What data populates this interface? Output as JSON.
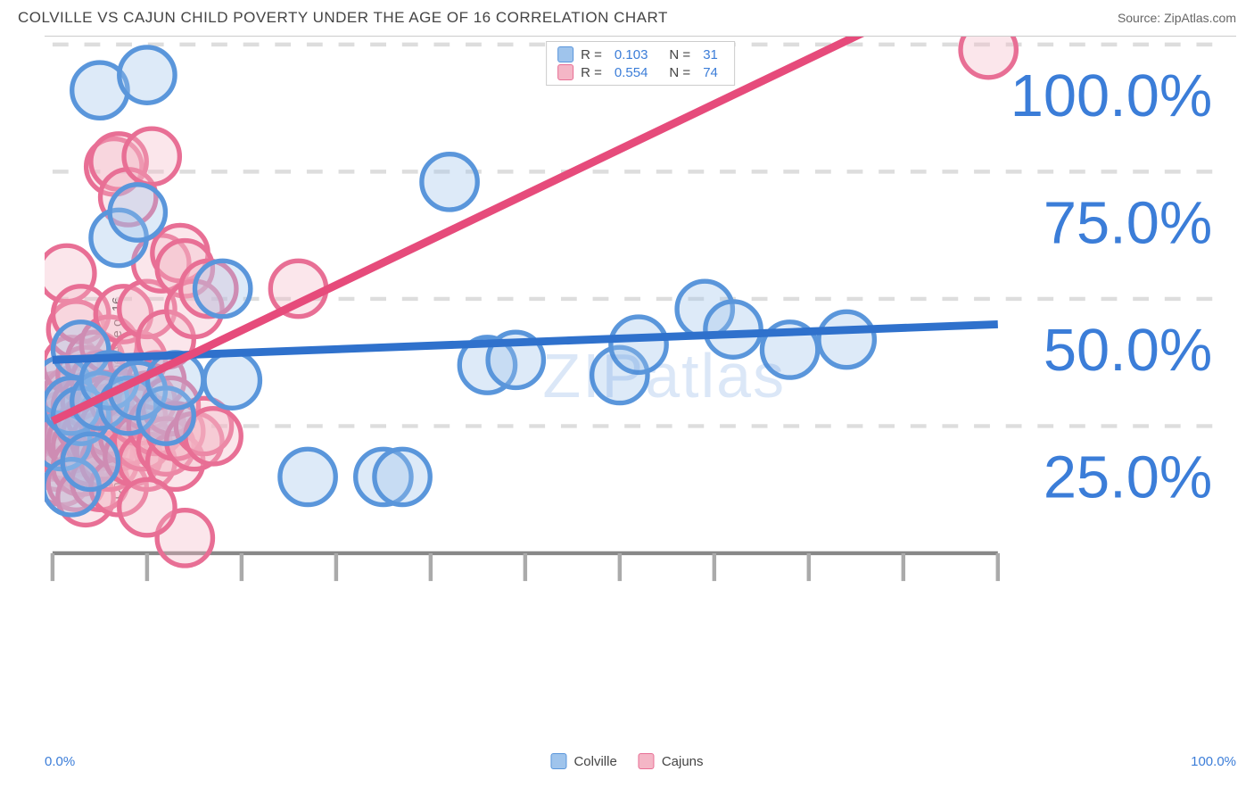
{
  "header": {
    "title": "COLVILLE VS CAJUN CHILD POVERTY UNDER THE AGE OF 16 CORRELATION CHART",
    "source_prefix": "Source: ",
    "source_name": "ZipAtlas.com"
  },
  "ylabel": "Child Poverty Under the Age of 16",
  "watermark": {
    "part1": "ZIP",
    "part2": "atlas"
  },
  "chart": {
    "type": "scatter",
    "background_color": "#ffffff",
    "grid_color": "#dddddd",
    "axis_color": "#888888",
    "tick_color": "#aaaaaa",
    "xlim": [
      0,
      100
    ],
    "ylim": [
      0,
      100
    ],
    "x_ticks": [
      0,
      10,
      20,
      30,
      40,
      50,
      60,
      70,
      80,
      90,
      100
    ],
    "y_gridlines": [
      25,
      50,
      75,
      100
    ],
    "y_tick_labels": [
      "25.0%",
      "50.0%",
      "75.0%",
      "100.0%"
    ],
    "x_axis_labels": {
      "left": "0.0%",
      "right": "100.0%"
    },
    "marker_radius": 7,
    "marker_stroke_width": 1.2,
    "marker_fill_opacity": 0.35,
    "line_width": 2,
    "label_color": "#3b7dd8",
    "label_fontsize": 15
  },
  "legend_top": {
    "rows": [
      {
        "color_fill": "#9fc4ec",
        "color_stroke": "#5a96db",
        "r_label": "R =",
        "r_val": "0.103",
        "n_label": "N =",
        "n_val": "31"
      },
      {
        "color_fill": "#f4b6c6",
        "color_stroke": "#e86f95",
        "r_label": "R =",
        "r_val": "0.554",
        "n_label": "N =",
        "n_val": "74"
      }
    ]
  },
  "legend_bottom": {
    "items": [
      {
        "color_fill": "#9fc4ec",
        "color_stroke": "#5a96db",
        "label": "Colville"
      },
      {
        "color_fill": "#f4b6c6",
        "color_stroke": "#e86f95",
        "label": "Cajuns"
      }
    ]
  },
  "series": {
    "colville": {
      "fill": "#9fc4ec",
      "stroke": "#5a96db",
      "line_color": "#2f71cc",
      "trend": {
        "y_at_x0": 38,
        "y_at_x100": 45
      },
      "points": [
        [
          1,
          33
        ],
        [
          1,
          22
        ],
        [
          2,
          29
        ],
        [
          2,
          13
        ],
        [
          3,
          40
        ],
        [
          3,
          27
        ],
        [
          4,
          18
        ],
        [
          5,
          30
        ],
        [
          5,
          91
        ],
        [
          6,
          34
        ],
        [
          7,
          62
        ],
        [
          8,
          29
        ],
        [
          9,
          67
        ],
        [
          9,
          32
        ],
        [
          10,
          94
        ],
        [
          12,
          27
        ],
        [
          13,
          34
        ],
        [
          18,
          52
        ],
        [
          19,
          34
        ],
        [
          27,
          15
        ],
        [
          35,
          15
        ],
        [
          37,
          15
        ],
        [
          42,
          73
        ],
        [
          46,
          37
        ],
        [
          49,
          38
        ],
        [
          60,
          35
        ],
        [
          62,
          41
        ],
        [
          69,
          48
        ],
        [
          72,
          44
        ],
        [
          78,
          40
        ],
        [
          84,
          42
        ]
      ]
    },
    "cajuns": {
      "fill": "#f4b6c6",
      "stroke": "#e86f95",
      "line_color": "#e64b7b",
      "trend": {
        "y_at_x0": 26,
        "y_at_x100": 115
      },
      "points": [
        [
          0,
          24
        ],
        [
          0,
          20
        ],
        [
          0,
          28
        ],
        [
          0.5,
          30
        ],
        [
          0.5,
          22
        ],
        [
          0.5,
          18
        ],
        [
          1,
          26
        ],
        [
          1,
          33
        ],
        [
          1,
          15
        ],
        [
          1.5,
          20
        ],
        [
          1.5,
          28
        ],
        [
          1.5,
          55
        ],
        [
          2,
          23
        ],
        [
          2,
          31
        ],
        [
          2,
          19
        ],
        [
          2,
          37
        ],
        [
          2.5,
          44
        ],
        [
          2.5,
          22
        ],
        [
          2.5,
          14
        ],
        [
          3,
          29
        ],
        [
          3,
          21
        ],
        [
          3,
          47
        ],
        [
          3,
          17
        ],
        [
          3.5,
          35
        ],
        [
          3.5,
          25
        ],
        [
          3.5,
          11
        ],
        [
          4,
          23
        ],
        [
          4,
          30
        ],
        [
          4,
          19
        ],
        [
          4.5,
          38
        ],
        [
          4.5,
          27
        ],
        [
          5,
          22
        ],
        [
          5,
          14
        ],
        [
          5,
          34
        ],
        [
          5.5,
          20
        ],
        [
          5.5,
          29
        ],
        [
          6,
          18
        ],
        [
          6,
          41
        ],
        [
          6,
          25
        ],
        [
          6.5,
          76
        ],
        [
          7,
          22
        ],
        [
          7,
          30
        ],
        [
          7,
          13
        ],
        [
          7,
          77
        ],
        [
          7.5,
          47
        ],
        [
          8,
          23
        ],
        [
          8,
          70
        ],
        [
          8.5,
          19
        ],
        [
          9,
          27
        ],
        [
          9,
          38
        ],
        [
          9.5,
          22
        ],
        [
          10,
          30
        ],
        [
          10,
          18
        ],
        [
          10,
          48
        ],
        [
          10.5,
          78
        ],
        [
          11,
          25
        ],
        [
          11,
          34
        ],
        [
          11.5,
          57
        ],
        [
          12,
          21
        ],
        [
          12,
          42
        ],
        [
          12.5,
          29
        ],
        [
          13,
          18
        ],
        [
          13,
          24
        ],
        [
          13.5,
          59
        ],
        [
          14,
          3
        ],
        [
          14,
          56
        ],
        [
          15,
          48
        ],
        [
          15,
          22
        ],
        [
          16,
          25
        ],
        [
          16.5,
          52
        ],
        [
          17,
          23
        ],
        [
          26,
          52
        ],
        [
          99,
          99
        ],
        [
          10,
          9
        ]
      ]
    }
  }
}
